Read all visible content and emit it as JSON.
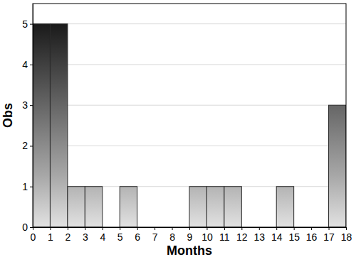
{
  "chart_data": {
    "type": "histogram",
    "x_label": "Months",
    "y_label": "Obs",
    "bins": [
      0,
      1,
      2,
      3,
      4,
      5,
      6,
      7,
      8,
      9,
      10,
      11,
      12,
      13,
      14,
      15,
      16,
      17,
      18
    ],
    "values": [
      5,
      5,
      1,
      1,
      0,
      1,
      0,
      0,
      0,
      1,
      1,
      1,
      0,
      0,
      1,
      0,
      0,
      3
    ],
    "xlim": [
      0,
      18
    ],
    "xticks": [
      0,
      1,
      2,
      3,
      4,
      5,
      6,
      7,
      8,
      9,
      10,
      11,
      12,
      13,
      14,
      15,
      16,
      17,
      18
    ],
    "ylim": [
      0,
      5.5
    ],
    "yticks": [
      0,
      1,
      2,
      3,
      4,
      5
    ],
    "grid": true
  }
}
